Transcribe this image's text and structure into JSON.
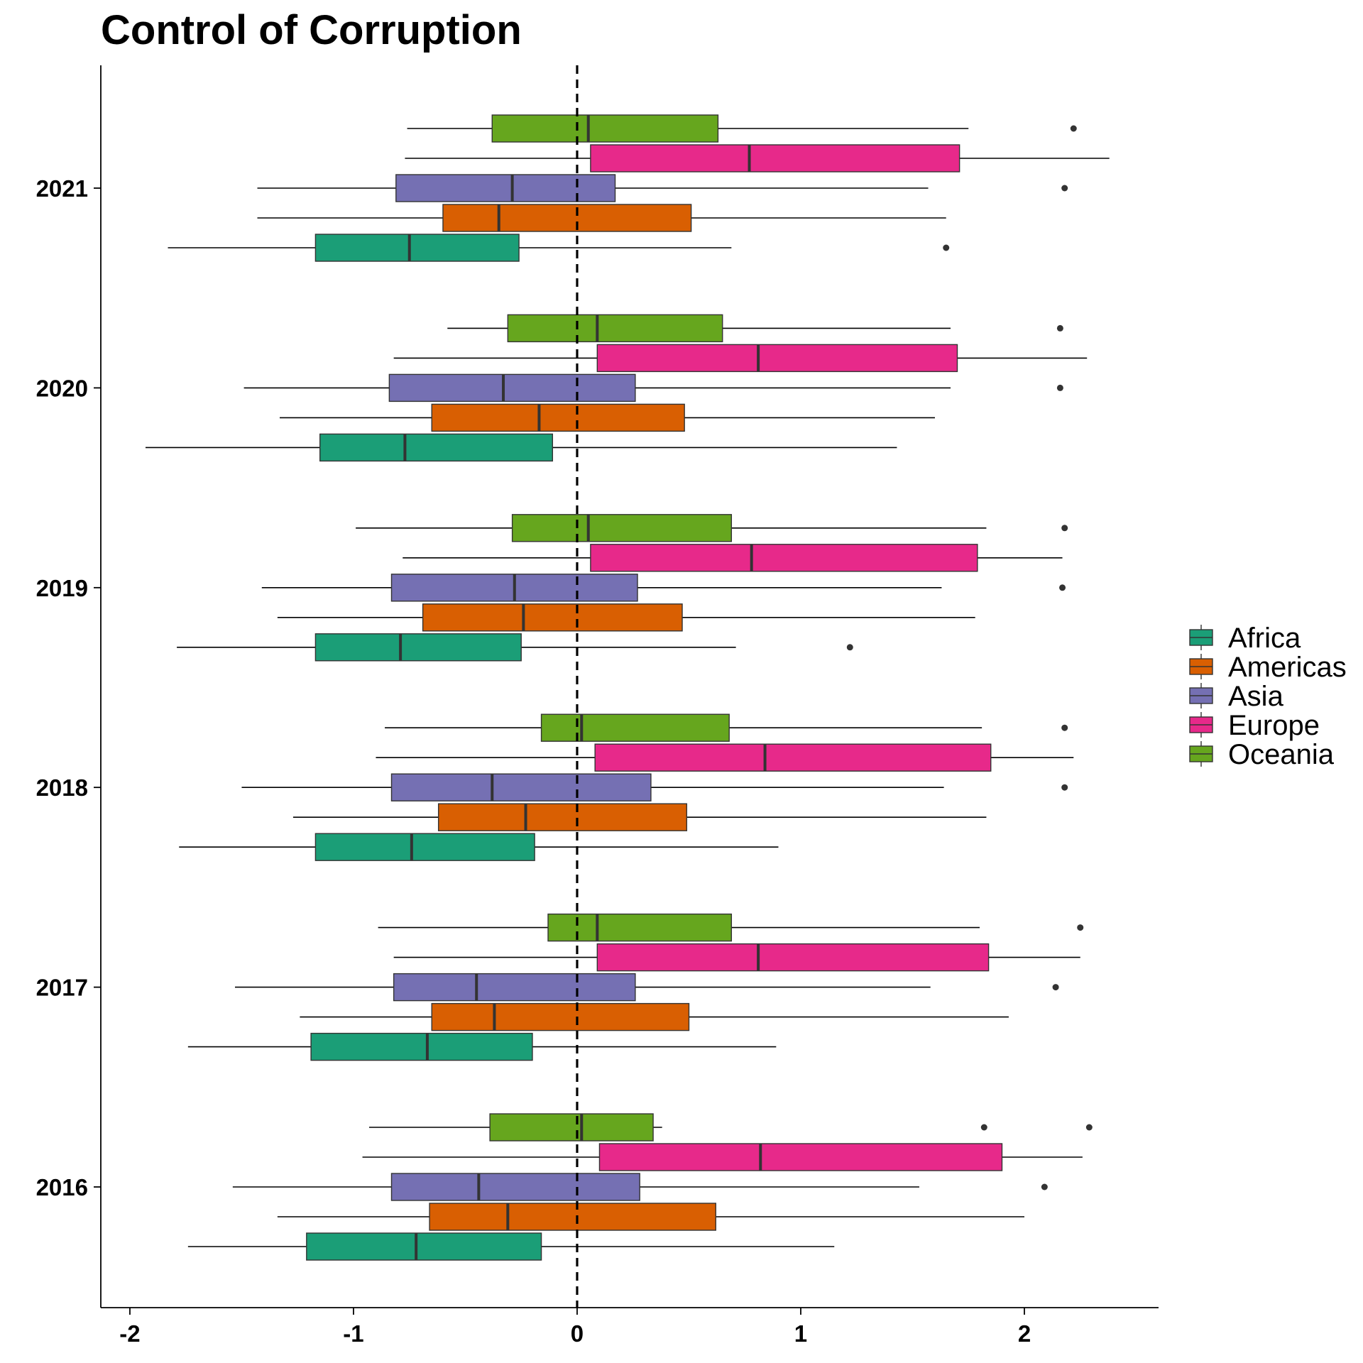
{
  "chart_data": {
    "type": "boxplot",
    "orientation": "horizontal",
    "title": "Control of Corruption",
    "xlabel": "",
    "ylabel": "",
    "xlim": [
      -2.13,
      2.6
    ],
    "xticks": [
      -2,
      -1,
      0,
      1,
      2
    ],
    "xtick_labels": [
      "-2",
      "-1",
      "0",
      "1",
      "2"
    ],
    "reference_line": {
      "x": 0,
      "style": "dashed"
    },
    "grid": false,
    "legend_position": "right",
    "categories": [
      "2016",
      "2017",
      "2018",
      "2019",
      "2020",
      "2021"
    ],
    "series": [
      {
        "name": "Africa",
        "color": "#1B9E77",
        "boxes": [
          {
            "whisker_low": -1.74,
            "q1": -1.21,
            "median": -0.72,
            "q3": -0.16,
            "whisker_high": 1.15,
            "outliers": []
          },
          {
            "whisker_low": -1.74,
            "q1": -1.19,
            "median": -0.67,
            "q3": -0.2,
            "whisker_high": 0.89,
            "outliers": []
          },
          {
            "whisker_low": -1.78,
            "q1": -1.17,
            "median": -0.74,
            "q3": -0.19,
            "whisker_high": 0.9,
            "outliers": []
          },
          {
            "whisker_low": -1.79,
            "q1": -1.17,
            "median": -0.79,
            "q3": -0.25,
            "whisker_high": 0.71,
            "outliers": [
              1.22
            ]
          },
          {
            "whisker_low": -1.93,
            "q1": -1.15,
            "median": -0.77,
            "q3": -0.11,
            "whisker_high": 1.43,
            "outliers": []
          },
          {
            "whisker_low": -1.83,
            "q1": -1.17,
            "median": -0.75,
            "q3": -0.26,
            "whisker_high": 0.69,
            "outliers": [
              1.65
            ]
          }
        ]
      },
      {
        "name": "Americas",
        "color": "#D95F02",
        "boxes": [
          {
            "whisker_low": -1.34,
            "q1": -0.66,
            "median": -0.31,
            "q3": 0.62,
            "whisker_high": 2.0,
            "outliers": []
          },
          {
            "whisker_low": -1.24,
            "q1": -0.65,
            "median": -0.37,
            "q3": 0.5,
            "whisker_high": 1.93,
            "outliers": []
          },
          {
            "whisker_low": -1.27,
            "q1": -0.62,
            "median": -0.23,
            "q3": 0.49,
            "whisker_high": 1.83,
            "outliers": []
          },
          {
            "whisker_low": -1.34,
            "q1": -0.69,
            "median": -0.24,
            "q3": 0.47,
            "whisker_high": 1.78,
            "outliers": []
          },
          {
            "whisker_low": -1.33,
            "q1": -0.65,
            "median": -0.17,
            "q3": 0.48,
            "whisker_high": 1.6,
            "outliers": []
          },
          {
            "whisker_low": -1.43,
            "q1": -0.6,
            "median": -0.35,
            "q3": 0.51,
            "whisker_high": 1.65,
            "outliers": []
          }
        ]
      },
      {
        "name": "Asia",
        "color": "#7570B3",
        "boxes": [
          {
            "whisker_low": -1.54,
            "q1": -0.83,
            "median": -0.44,
            "q3": 0.28,
            "whisker_high": 1.53,
            "outliers": [
              2.09
            ]
          },
          {
            "whisker_low": -1.53,
            "q1": -0.82,
            "median": -0.45,
            "q3": 0.26,
            "whisker_high": 1.58,
            "outliers": [
              2.14
            ]
          },
          {
            "whisker_low": -1.5,
            "q1": -0.83,
            "median": -0.38,
            "q3": 0.33,
            "whisker_high": 1.64,
            "outliers": [
              2.18
            ]
          },
          {
            "whisker_low": -1.41,
            "q1": -0.83,
            "median": -0.28,
            "q3": 0.27,
            "whisker_high": 1.63,
            "outliers": [
              2.17
            ]
          },
          {
            "whisker_low": -1.49,
            "q1": -0.84,
            "median": -0.33,
            "q3": 0.26,
            "whisker_high": 1.67,
            "outliers": [
              2.16
            ]
          },
          {
            "whisker_low": -1.43,
            "q1": -0.81,
            "median": -0.29,
            "q3": 0.17,
            "whisker_high": 1.57,
            "outliers": [
              2.18
            ]
          }
        ]
      },
      {
        "name": "Europe",
        "color": "#E7298A",
        "boxes": [
          {
            "whisker_low": -0.96,
            "q1": 0.1,
            "median": 0.82,
            "q3": 1.9,
            "whisker_high": 2.26,
            "outliers": []
          },
          {
            "whisker_low": -0.82,
            "q1": 0.09,
            "median": 0.81,
            "q3": 1.84,
            "whisker_high": 2.25,
            "outliers": []
          },
          {
            "whisker_low": -0.9,
            "q1": 0.08,
            "median": 0.84,
            "q3": 1.85,
            "whisker_high": 2.22,
            "outliers": []
          },
          {
            "whisker_low": -0.78,
            "q1": 0.06,
            "median": 0.78,
            "q3": 1.79,
            "whisker_high": 2.17,
            "outliers": []
          },
          {
            "whisker_low": -0.82,
            "q1": 0.09,
            "median": 0.81,
            "q3": 1.7,
            "whisker_high": 2.28,
            "outliers": []
          },
          {
            "whisker_low": -0.77,
            "q1": 0.06,
            "median": 0.77,
            "q3": 1.71,
            "whisker_high": 2.38,
            "outliers": []
          }
        ]
      },
      {
        "name": "Oceania",
        "color": "#66A61E",
        "boxes": [
          {
            "whisker_low": -0.93,
            "q1": -0.39,
            "median": 0.02,
            "q3": 0.34,
            "whisker_high": 0.38,
            "outliers": [
              1.82,
              2.29
            ]
          },
          {
            "whisker_low": -0.89,
            "q1": -0.13,
            "median": 0.09,
            "q3": 0.69,
            "whisker_high": 1.8,
            "outliers": [
              2.25
            ]
          },
          {
            "whisker_low": -0.86,
            "q1": -0.16,
            "median": 0.02,
            "q3": 0.68,
            "whisker_high": 1.81,
            "outliers": [
              2.18
            ]
          },
          {
            "whisker_low": -0.99,
            "q1": -0.29,
            "median": 0.05,
            "q3": 0.69,
            "whisker_high": 1.83,
            "outliers": [
              2.18
            ]
          },
          {
            "whisker_low": -0.58,
            "q1": -0.31,
            "median": 0.09,
            "q3": 0.65,
            "whisker_high": 1.67,
            "outliers": [
              2.16
            ]
          },
          {
            "whisker_low": -0.76,
            "q1": -0.38,
            "median": 0.05,
            "q3": 0.63,
            "whisker_high": 1.75,
            "outliers": [
              2.22
            ]
          }
        ]
      }
    ]
  }
}
